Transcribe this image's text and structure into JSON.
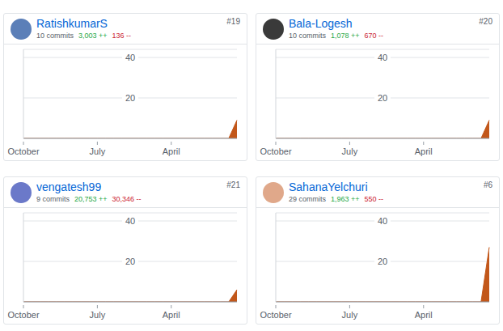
{
  "chart_data": [
    {
      "type": "area",
      "title": "RatishkumarS",
      "annotations": {
        "rank": "#19",
        "commits": "10 commits",
        "additions": "3,003 ++",
        "deletions": "136 --"
      },
      "categories": [
        "October",
        null,
        null,
        null,
        null,
        null,
        null,
        null,
        null,
        "July",
        null,
        null,
        null,
        null,
        null,
        null,
        null,
        null,
        "April",
        null,
        null,
        null,
        null,
        null,
        null,
        null,
        null
      ],
      "values": [
        0,
        0,
        0,
        0,
        0,
        0,
        0,
        0,
        0,
        0,
        0,
        0,
        0,
        0,
        0,
        0,
        0,
        0,
        0,
        0,
        0,
        0,
        0,
        0,
        0,
        0,
        9
      ],
      "color": "#c2571a",
      "ylim": [
        0,
        44
      ],
      "yticks": [
        20,
        40
      ],
      "grid": true
    },
    {
      "type": "area",
      "title": "Bala-Logesh",
      "annotations": {
        "rank": "#20",
        "commits": "10 commits",
        "additions": "1,078 ++",
        "deletions": "670 --"
      },
      "categories": [
        "October",
        null,
        null,
        null,
        null,
        null,
        null,
        null,
        null,
        "July",
        null,
        null,
        null,
        null,
        null,
        null,
        null,
        null,
        "April",
        null,
        null,
        null,
        null,
        null,
        null,
        null,
        null
      ],
      "values": [
        0,
        0,
        0,
        0,
        0,
        0,
        0,
        0,
        0,
        0,
        0,
        0,
        0,
        0,
        0,
        0,
        0,
        0,
        0,
        0,
        0,
        0,
        0,
        0,
        0,
        0,
        9
      ],
      "color": "#c2571a",
      "ylim": [
        0,
        44
      ],
      "yticks": [
        20,
        40
      ],
      "grid": true
    },
    {
      "type": "area",
      "title": "vengatesh99",
      "annotations": {
        "rank": "#21",
        "commits": "9 commits",
        "additions": "20,753 ++",
        "deletions": "30,346 --"
      },
      "categories": [
        "October",
        null,
        null,
        null,
        null,
        null,
        null,
        null,
        null,
        "July",
        null,
        null,
        null,
        null,
        null,
        null,
        null,
        null,
        "April",
        null,
        null,
        null,
        null,
        null,
        null,
        null,
        null
      ],
      "values": [
        0,
        0,
        0,
        0,
        0,
        0,
        0,
        0,
        0,
        0,
        0,
        0,
        0,
        0,
        0,
        0,
        0,
        0,
        0,
        0,
        0,
        0,
        0,
        0,
        0,
        0,
        6
      ],
      "color": "#c2571a",
      "ylim": [
        0,
        44
      ],
      "yticks": [
        20,
        40
      ],
      "grid": true
    },
    {
      "type": "area",
      "title": "SahanaYelchuri",
      "annotations": {
        "rank": "#6",
        "commits": "29 commits",
        "additions": "1,963 ++",
        "deletions": "550 --"
      },
      "categories": [
        "October",
        null,
        null,
        null,
        null,
        null,
        null,
        null,
        null,
        "July",
        null,
        null,
        null,
        null,
        null,
        null,
        null,
        null,
        "April",
        null,
        null,
        null,
        null,
        null,
        null,
        null,
        null
      ],
      "values": [
        0,
        0,
        0,
        0,
        0,
        0,
        0,
        0,
        0,
        0,
        0,
        0,
        0,
        0,
        0,
        0,
        0,
        0,
        0,
        0,
        0,
        0,
        0,
        0,
        0,
        0,
        27
      ],
      "color": "#c2571a",
      "ylim": [
        0,
        44
      ],
      "yticks": [
        20,
        40
      ],
      "grid": true
    }
  ]
}
